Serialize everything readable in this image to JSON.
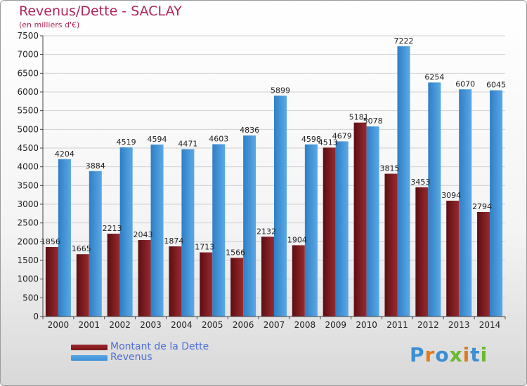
{
  "header": {
    "title": "Revenus/Dette - SACLAY",
    "subtitle": "(en milliers d'€)"
  },
  "legend": {
    "items": [
      {
        "label": "Montant de la Dette",
        "color": "#7a1418"
      },
      {
        "label": "Revenus",
        "color": "#3a8fd6"
      }
    ]
  },
  "logo": {
    "text": "Proxiti"
  },
  "chart_data": {
    "type": "bar",
    "title": "Revenus/Dette - SACLAY",
    "subtitle": "(en milliers d'€)",
    "categories": [
      "2000",
      "2001",
      "2002",
      "2003",
      "2004",
      "2005",
      "2006",
      "2007",
      "2008",
      "2009",
      "2010",
      "2011",
      "2012",
      "2013",
      "2014"
    ],
    "series": [
      {
        "name": "Montant de la Dette",
        "color": "#7a1418",
        "values": [
          1856,
          1665,
          2213,
          2043,
          1874,
          1713,
          1566,
          2132,
          1904,
          4513,
          5181,
          3815,
          3453,
          3094,
          2794
        ],
        "labels": [
          "1856",
          "1665",
          "2213",
          "2043",
          "1874",
          "1713",
          "1566",
          "2132",
          "1904",
          "4513",
          "5181",
          "3815",
          "3453",
          "3094",
          "2794"
        ]
      },
      {
        "name": "Revenus",
        "color": "#3a8fd6",
        "values": [
          4204,
          3884,
          4519,
          4594,
          4471,
          4603,
          4836,
          5899,
          4598,
          4679,
          5078,
          7222,
          6254,
          6070,
          6045
        ],
        "labels": [
          "4204",
          "3884",
          "4519",
          "4594",
          "4471",
          "4603",
          "4836",
          "5899",
          "4598",
          "4679",
          "5078",
          "7222",
          "6254",
          "6070",
          "6045"
        ]
      }
    ],
    "ylim": [
      0,
      7500
    ],
    "yticks": [
      0,
      500,
      1000,
      1500,
      2000,
      2500,
      3000,
      3500,
      4000,
      4500,
      5000,
      5500,
      6000,
      6500,
      7000,
      7500
    ],
    "grid": true,
    "legend_position": "bottom-left"
  }
}
